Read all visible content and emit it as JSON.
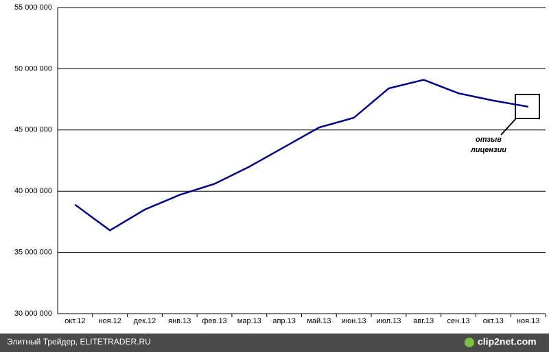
{
  "chart_data": {
    "type": "line",
    "categories": [
      "окт.12",
      "ноя.12",
      "дек.12",
      "янв.13",
      "фев.13",
      "мар.13",
      "апр.13",
      "май.13",
      "июн.13",
      "июл.13",
      "авг.13",
      "сен.13",
      "окт.13",
      "ноя.13"
    ],
    "series": [
      {
        "color": "#000080",
        "values": [
          38900000,
          36800000,
          38500000,
          39700000,
          40600000,
          42000000,
          43600000,
          45200000,
          46000000,
          48400000,
          49100000,
          48000000,
          47400000,
          46900000
        ]
      }
    ],
    "ylim": [
      30000000,
      55000000
    ],
    "yticks": [
      {
        "value": 30000000,
        "label": "30 000 000"
      },
      {
        "value": 35000000,
        "label": "35 000 000"
      },
      {
        "value": 40000000,
        "label": "40 000 000"
      },
      {
        "value": 45000000,
        "label": "45 000 000"
      },
      {
        "value": 50000000,
        "label": "50 000 000"
      },
      {
        "value": 55000000,
        "label": "55 000 000"
      }
    ],
    "grid": true,
    "annotation": [
      "отзыв",
      "лицензии"
    ]
  },
  "footer": {
    "caption": "Элитный Трейдер, ELITETRADER.RU",
    "logo": "clip2net.com"
  }
}
